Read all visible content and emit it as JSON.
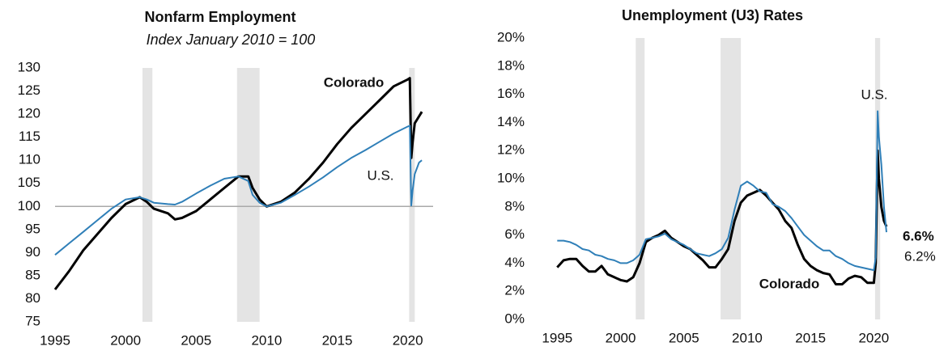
{
  "chart_data": [
    {
      "type": "line",
      "title": "Nonfarm Employment",
      "subtitle": "Index January 2010 = 100",
      "x": [
        1995,
        1996,
        1997,
        1998,
        1999,
        2000,
        2001,
        2001.5,
        2002,
        2003,
        2003.5,
        2004,
        2005,
        2006,
        2007,
        2008,
        2008.7,
        2009,
        2009.5,
        2010,
        2011,
        2012,
        2013,
        2014,
        2015,
        2016,
        2017,
        2018,
        2019,
        2020,
        2020.15,
        2020.25,
        2020.35,
        2020.5,
        2020.8,
        2021
      ],
      "series": [
        {
          "name": "Colorado",
          "color": "#000000",
          "values": [
            82,
            86,
            90.5,
            94,
            97.5,
            100.5,
            102,
            101,
            99.5,
            98.5,
            97.2,
            97.5,
            99,
            101.5,
            104,
            106.5,
            106.5,
            104,
            101.5,
            100,
            101,
            103,
            106,
            109.5,
            113.5,
            117,
            120,
            123,
            126,
            127.5,
            127.8,
            110.5,
            114,
            118,
            119.5,
            120.5
          ]
        },
        {
          "name": "U.S.",
          "color": "#2f7fb8",
          "values": [
            89.5,
            92,
            94.5,
            97,
            99.5,
            101.5,
            102,
            101.5,
            100.8,
            100.5,
            100.4,
            101,
            102.8,
            104.5,
            106,
            106.5,
            105.5,
            102.5,
            100.8,
            100,
            100.8,
            102.5,
            104.3,
            106.3,
            108.5,
            110.5,
            112.2,
            114,
            115.8,
            117.3,
            117.5,
            100.2,
            103.5,
            107,
            109.5,
            110
          ]
        }
      ],
      "recessions": [
        [
          2001.2,
          2001.9
        ],
        [
          2007.9,
          2009.5
        ],
        [
          2020.1,
          2020.5
        ]
      ],
      "reference_line": 100,
      "xlim": [
        1995,
        2021.8
      ],
      "xticks": [
        1995,
        2000,
        2005,
        2010,
        2015,
        2020
      ],
      "ylim": [
        75,
        130
      ],
      "yticks": [
        75,
        80,
        85,
        90,
        95,
        100,
        105,
        110,
        115,
        120,
        125,
        130
      ]
    },
    {
      "type": "line",
      "title": "Unemployment (U3) Rates",
      "x": [
        1995,
        1995.5,
        1996,
        1996.5,
        1997,
        1997.5,
        1998,
        1998.5,
        1999,
        1999.5,
        2000,
        2000.5,
        2001,
        2001.5,
        2002,
        2002.5,
        2003,
        2003.5,
        2004,
        2004.5,
        2005,
        2005.5,
        2006,
        2006.5,
        2007,
        2007.5,
        2008,
        2008.5,
        2009,
        2009.5,
        2010,
        2010.5,
        2011,
        2011.5,
        2012,
        2012.5,
        2013,
        2013.5,
        2014,
        2014.5,
        2015,
        2015.5,
        2016,
        2016.5,
        2017,
        2017.5,
        2018,
        2018.5,
        2019,
        2019.5,
        2020,
        2020.15,
        2020.3,
        2020.4,
        2020.6,
        2020.8,
        2021
      ],
      "series": [
        {
          "name": "Colorado",
          "color": "#000000",
          "end_label": "6.6%",
          "values": [
            3.7,
            4.2,
            4.3,
            4.3,
            3.8,
            3.4,
            3.4,
            3.8,
            3.2,
            3.0,
            2.8,
            2.7,
            3.0,
            4.0,
            5.5,
            5.8,
            6.0,
            6.3,
            5.8,
            5.5,
            5.2,
            5.0,
            4.6,
            4.2,
            3.7,
            3.7,
            4.3,
            5.0,
            7.0,
            8.3,
            8.8,
            9.0,
            9.2,
            8.8,
            8.3,
            7.8,
            7.0,
            6.5,
            5.3,
            4.3,
            3.8,
            3.5,
            3.3,
            3.2,
            2.5,
            2.5,
            2.9,
            3.1,
            3.0,
            2.6,
            2.6,
            4,
            12,
            10,
            8,
            7,
            6.6
          ]
        },
        {
          "name": "U.S.",
          "color": "#2f7fb8",
          "end_label": "6.2%",
          "values": [
            5.6,
            5.6,
            5.5,
            5.3,
            5.0,
            4.9,
            4.6,
            4.5,
            4.3,
            4.2,
            4.0,
            4.0,
            4.2,
            4.6,
            5.7,
            5.8,
            5.9,
            6.1,
            5.7,
            5.5,
            5.3,
            5.0,
            4.7,
            4.6,
            4.5,
            4.7,
            5.0,
            5.8,
            7.8,
            9.5,
            9.8,
            9.5,
            9.1,
            9.0,
            8.2,
            8.0,
            7.7,
            7.2,
            6.6,
            6.0,
            5.6,
            5.2,
            4.9,
            4.9,
            4.5,
            4.3,
            4.0,
            3.8,
            3.7,
            3.6,
            3.5,
            4.4,
            14.8,
            13,
            11,
            8,
            6.2
          ]
        }
      ],
      "recessions": [
        [
          2001.2,
          2001.9
        ],
        [
          2007.9,
          2009.5
        ],
        [
          2020.1,
          2020.5
        ]
      ],
      "xlim": [
        1993.7,
        2021
      ],
      "xticks": [
        1995,
        2000,
        2005,
        2010,
        2015,
        2020
      ],
      "ylim": [
        0,
        20
      ],
      "yticks": [
        {
          "value": 0,
          "label": "0%"
        },
        {
          "value": 2,
          "label": "2%"
        },
        {
          "value": 4,
          "label": "4%"
        },
        {
          "value": 6,
          "label": "6%"
        },
        {
          "value": 8,
          "label": "8%"
        },
        {
          "value": 10,
          "label": "10%"
        },
        {
          "value": 12,
          "label": "12%"
        },
        {
          "value": 14,
          "label": "14%"
        },
        {
          "value": 16,
          "label": "16%"
        },
        {
          "value": 18,
          "label": "18%"
        },
        {
          "value": 20,
          "label": "20%"
        }
      ]
    }
  ]
}
